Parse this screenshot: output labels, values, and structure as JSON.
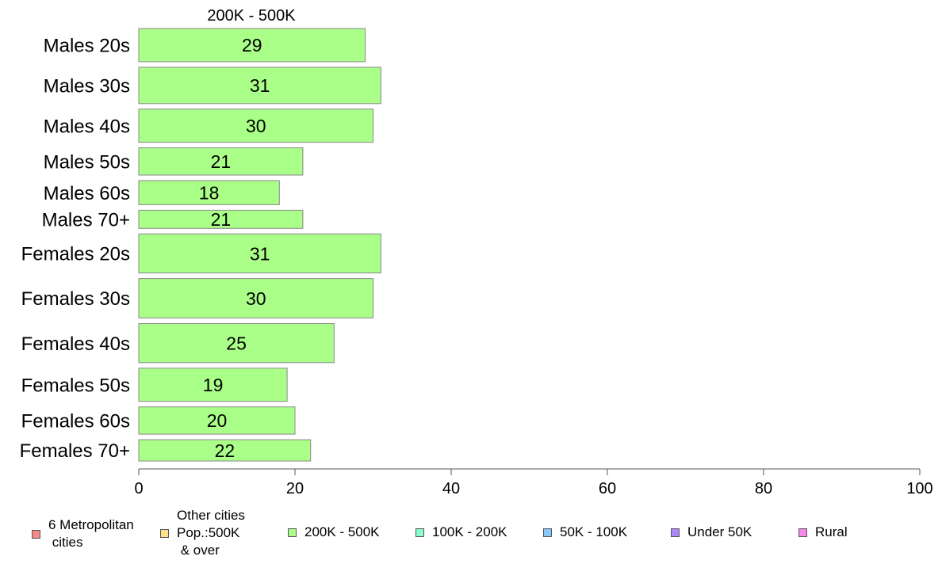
{
  "chart_data": {
    "type": "bar",
    "orientation": "horizontal",
    "title": "200K - 500K",
    "categories": [
      "Males 20s",
      "Males 30s",
      "Males 40s",
      "Males 50s",
      "Males 60s",
      "Males 70+",
      "Females 20s",
      "Females 30s",
      "Females 40s",
      "Females 50s",
      "Females 60s",
      "Females 70+"
    ],
    "values": [
      29,
      31,
      30,
      21,
      18,
      21,
      31,
      30,
      25,
      19,
      20,
      22
    ],
    "data_labels": [
      "29",
      "31",
      "30",
      "21",
      "18",
      "21",
      "31",
      "30",
      "25",
      "19",
      "20",
      "22"
    ],
    "bar_weights": [
      0.84,
      0.92,
      0.84,
      0.69,
      0.61,
      0.46,
      0.99,
      1.0,
      0.99,
      0.84,
      0.69,
      0.54
    ],
    "xlim": [
      0,
      100
    ],
    "xticks": [
      0,
      20,
      40,
      60,
      80,
      100
    ],
    "xlabel": "",
    "ylabel": "",
    "grid": false,
    "bar_color": "#aaff88",
    "bar_border": "#888888"
  },
  "legend": {
    "placement": "bottom",
    "items": [
      {
        "label": "6 Metropolitan\n cities",
        "color": "#f88888"
      },
      {
        "label": "Other cities\nPop.:500K\n & over",
        "color": "#ffe088"
      },
      {
        "label": "200K - 500K",
        "color": "#aaff88"
      },
      {
        "label": "100K - 200K",
        "color": "#88ffcc"
      },
      {
        "label": "50K - 100K",
        "color": "#88c8f8"
      },
      {
        "label": "Under 50K",
        "color": "#aa88f8"
      },
      {
        "label": "Rural",
        "color": "#f888e8"
      }
    ]
  }
}
